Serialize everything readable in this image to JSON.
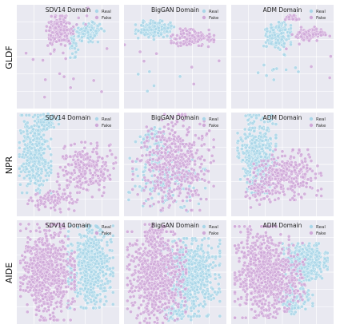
{
  "figure": {
    "rows": [
      "GLDF",
      "NPR",
      "AIDE"
    ],
    "columns": [
      "SDV14 Domain",
      "BigGAN Domain",
      "ADM Domain"
    ],
    "colors": {
      "real": "#a9d6e8",
      "fake": "#cfa8d8",
      "panel_bg": "#e9e9f1",
      "grid": "#ffffff"
    }
  },
  "chart_data": [
    {
      "type": "scatter",
      "row": "GLDF",
      "title": "SDV14 Domain",
      "legend": [
        "Real",
        "Fake"
      ],
      "legend_position": "top-right",
      "grid": true,
      "series": [
        {
          "name": "Real",
          "clusters": [
            {
              "cx": 0.7,
              "cy": 0.74,
              "rx": 0.14,
              "ry": 0.09,
              "n": 130
            },
            {
              "cx": 0.55,
              "cy": 0.6,
              "rx": 0.05,
              "ry": 0.1,
              "n": 25
            }
          ]
        },
        {
          "name": "Fake",
          "clusters": [
            {
              "cx": 0.42,
              "cy": 0.75,
              "rx": 0.12,
              "ry": 0.13,
              "n": 180
            },
            {
              "cx": 0.45,
              "cy": 0.55,
              "rx": 0.4,
              "ry": 0.4,
              "n": 25
            }
          ]
        }
      ]
    },
    {
      "type": "scatter",
      "row": "GLDF",
      "title": "BigGAN Domain",
      "legend": [
        "Real",
        "Fake"
      ],
      "legend_position": "top-right",
      "grid": true,
      "series": [
        {
          "name": "Real",
          "clusters": [
            {
              "cx": 0.3,
              "cy": 0.76,
              "rx": 0.17,
              "ry": 0.08,
              "n": 160
            },
            {
              "cx": 0.45,
              "cy": 0.5,
              "rx": 0.35,
              "ry": 0.4,
              "n": 8
            }
          ]
        },
        {
          "name": "Fake",
          "clusters": [
            {
              "cx": 0.67,
              "cy": 0.68,
              "rx": 0.19,
              "ry": 0.08,
              "n": 160
            },
            {
              "cx": 0.5,
              "cy": 0.5,
              "rx": 0.45,
              "ry": 0.45,
              "n": 8
            }
          ]
        }
      ]
    },
    {
      "type": "scatter",
      "row": "GLDF",
      "title": "ADM Domain",
      "legend": [
        "Real",
        "Fake"
      ],
      "legend_position": "top-right",
      "grid": true,
      "series": [
        {
          "name": "Real",
          "clusters": [
            {
              "cx": 0.45,
              "cy": 0.7,
              "rx": 0.12,
              "ry": 0.12,
              "n": 150
            },
            {
              "cx": 0.45,
              "cy": 0.35,
              "rx": 0.2,
              "ry": 0.18,
              "n": 12
            }
          ]
        },
        {
          "name": "Fake",
          "clusters": [
            {
              "cx": 0.76,
              "cy": 0.72,
              "rx": 0.15,
              "ry": 0.06,
              "n": 120
            },
            {
              "cx": 0.6,
              "cy": 0.87,
              "rx": 0.08,
              "ry": 0.03,
              "n": 25
            },
            {
              "cx": 0.8,
              "cy": 0.4,
              "rx": 0.25,
              "ry": 0.3,
              "n": 6
            }
          ]
        }
      ]
    },
    {
      "type": "scatter",
      "row": "NPR",
      "title": "SDV14 Domain",
      "legend": [
        "Real",
        "Fake"
      ],
      "legend_position": "top-right",
      "grid": true,
      "series": [
        {
          "name": "Real",
          "clusters": [
            {
              "cx": 0.18,
              "cy": 0.6,
              "rx": 0.14,
              "ry": 0.34,
              "n": 380
            },
            {
              "cx": 0.3,
              "cy": 0.9,
              "rx": 0.1,
              "ry": 0.08,
              "n": 60
            }
          ]
        },
        {
          "name": "Fake",
          "clusters": [
            {
              "cx": 0.68,
              "cy": 0.45,
              "rx": 0.26,
              "ry": 0.24,
              "n": 250
            },
            {
              "cx": 0.35,
              "cy": 0.15,
              "rx": 0.22,
              "ry": 0.1,
              "n": 90
            }
          ]
        }
      ]
    },
    {
      "type": "scatter",
      "row": "NPR",
      "title": "BigGAN Domain",
      "legend": [
        "Real",
        "Fake"
      ],
      "legend_position": "top-right",
      "grid": true,
      "series": [
        {
          "name": "Real",
          "clusters": [
            {
              "cx": 0.42,
              "cy": 0.4,
              "rx": 0.34,
              "ry": 0.32,
              "n": 200
            },
            {
              "cx": 0.3,
              "cy": 0.75,
              "rx": 0.14,
              "ry": 0.12,
              "n": 40
            }
          ]
        },
        {
          "name": "Fake",
          "clusters": [
            {
              "cx": 0.48,
              "cy": 0.52,
              "rx": 0.36,
              "ry": 0.42,
              "n": 480
            }
          ]
        }
      ]
    },
    {
      "type": "scatter",
      "row": "NPR",
      "title": "ADM Domain",
      "legend": [
        "Real",
        "Fake"
      ],
      "legend_position": "top-right",
      "grid": true,
      "series": [
        {
          "name": "Real",
          "clusters": [
            {
              "cx": 0.25,
              "cy": 0.6,
              "rx": 0.17,
              "ry": 0.34,
              "n": 420
            }
          ]
        },
        {
          "name": "Fake",
          "clusters": [
            {
              "cx": 0.55,
              "cy": 0.4,
              "rx": 0.3,
              "ry": 0.22,
              "n": 280
            },
            {
              "cx": 0.25,
              "cy": 0.25,
              "rx": 0.12,
              "ry": 0.15,
              "n": 60
            }
          ]
        }
      ]
    },
    {
      "type": "scatter",
      "row": "AIDE",
      "title": "SDV14 Domain",
      "legend": [
        "Real",
        "Fake"
      ],
      "legend_position": "top-right",
      "grid": true,
      "series": [
        {
          "name": "Real",
          "clusters": [
            {
              "cx": 0.72,
              "cy": 0.55,
              "rx": 0.2,
              "ry": 0.36,
              "n": 560
            }
          ]
        },
        {
          "name": "Fake",
          "clusters": [
            {
              "cx": 0.3,
              "cy": 0.5,
              "rx": 0.24,
              "ry": 0.42,
              "n": 700
            }
          ]
        }
      ]
    },
    {
      "type": "scatter",
      "row": "AIDE",
      "title": "BigGAN Domain",
      "legend": [
        "Real",
        "Fake"
      ],
      "legend_position": "top-right",
      "grid": true,
      "series": [
        {
          "name": "Real",
          "clusters": [
            {
              "cx": 0.65,
              "cy": 0.45,
              "rx": 0.26,
              "ry": 0.34,
              "n": 600
            },
            {
              "cx": 0.5,
              "cy": 0.1,
              "rx": 0.14,
              "ry": 0.06,
              "n": 60
            }
          ]
        },
        {
          "name": "Fake",
          "clusters": [
            {
              "cx": 0.32,
              "cy": 0.45,
              "rx": 0.26,
              "ry": 0.4,
              "n": 700
            },
            {
              "cx": 0.3,
              "cy": 0.85,
              "rx": 0.12,
              "ry": 0.1,
              "n": 60
            }
          ]
        }
      ]
    },
    {
      "type": "scatter",
      "row": "AIDE",
      "title": "ADM Domain",
      "legend": [
        "Real",
        "Fake"
      ],
      "legend_position": "top-right",
      "grid": true,
      "series": [
        {
          "name": "Real",
          "clusters": [
            {
              "cx": 0.72,
              "cy": 0.6,
              "rx": 0.2,
              "ry": 0.16,
              "n": 450
            },
            {
              "cx": 0.62,
              "cy": 0.25,
              "rx": 0.16,
              "ry": 0.14,
              "n": 120
            }
          ]
        },
        {
          "name": "Fake",
          "clusters": [
            {
              "cx": 0.3,
              "cy": 0.5,
              "rx": 0.24,
              "ry": 0.4,
              "n": 650
            },
            {
              "cx": 0.55,
              "cy": 0.45,
              "rx": 0.18,
              "ry": 0.3,
              "n": 150
            }
          ]
        }
      ]
    }
  ]
}
